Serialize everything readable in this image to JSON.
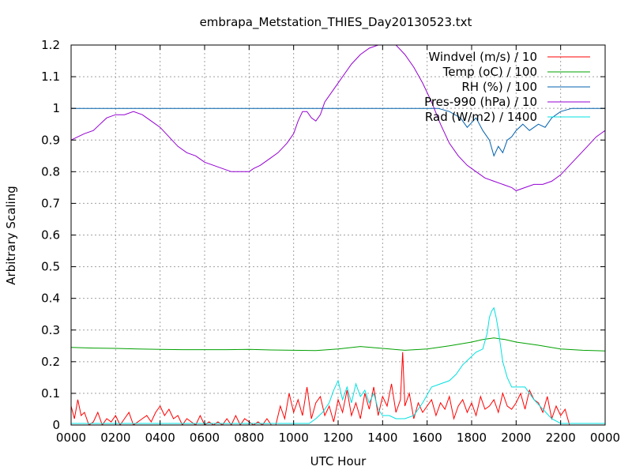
{
  "chart_data": {
    "type": "line",
    "title": "embrapa_Metstation_THIES_Day20130523.txt",
    "xlabel": "UTC Hour",
    "ylabel": "Arbitrary Scaling",
    "xlim": [
      0,
      24
    ],
    "ylim": [
      0,
      1.2
    ],
    "grid": true,
    "legend_position": "top-right",
    "x_ticks": [
      {
        "value": 0,
        "label": "0000"
      },
      {
        "value": 2,
        "label": "0200"
      },
      {
        "value": 4,
        "label": "0400"
      },
      {
        "value": 6,
        "label": "0600"
      },
      {
        "value": 8,
        "label": "0800"
      },
      {
        "value": 10,
        "label": "1000"
      },
      {
        "value": 12,
        "label": "1200"
      },
      {
        "value": 14,
        "label": "1400"
      },
      {
        "value": 16,
        "label": "1600"
      },
      {
        "value": 18,
        "label": "1800"
      },
      {
        "value": 20,
        "label": "2000"
      },
      {
        "value": 22,
        "label": "2200"
      },
      {
        "value": 24,
        "label": "0000"
      }
    ],
    "y_ticks": [
      {
        "value": 0,
        "label": "0"
      },
      {
        "value": 0.1,
        "label": "0.1"
      },
      {
        "value": 0.2,
        "label": "0.2"
      },
      {
        "value": 0.3,
        "label": "0.3"
      },
      {
        "value": 0.4,
        "label": "0.4"
      },
      {
        "value": 0.5,
        "label": "0.5"
      },
      {
        "value": 0.6,
        "label": "0.6"
      },
      {
        "value": 0.7,
        "label": "0.7"
      },
      {
        "value": 0.8,
        "label": "0.8"
      },
      {
        "value": 0.9,
        "label": "0.9"
      },
      {
        "value": 1.0,
        "label": "1"
      },
      {
        "value": 1.1,
        "label": "1.1"
      },
      {
        "value": 1.2,
        "label": "1.2"
      }
    ],
    "series": [
      {
        "name": "Windvel (m/s) / 10",
        "color": "#ff0000",
        "x": [
          0,
          0.15,
          0.3,
          0.45,
          0.6,
          0.8,
          1,
          1.2,
          1.4,
          1.6,
          1.8,
          2,
          2.2,
          2.4,
          2.6,
          2.8,
          3,
          3.2,
          3.4,
          3.6,
          3.8,
          4,
          4.2,
          4.4,
          4.6,
          4.8,
          5,
          5.2,
          5.4,
          5.6,
          5.8,
          6,
          6.2,
          6.4,
          6.6,
          6.8,
          7,
          7.2,
          7.4,
          7.6,
          7.8,
          8,
          8.2,
          8.4,
          8.6,
          8.8,
          9,
          9.2,
          9.4,
          9.6,
          9.8,
          10,
          10.2,
          10.4,
          10.6,
          10.8,
          11,
          11.2,
          11.4,
          11.6,
          11.8,
          12,
          12.2,
          12.4,
          12.6,
          12.8,
          13,
          13.2,
          13.4,
          13.6,
          13.8,
          14,
          14.2,
          14.4,
          14.6,
          14.8,
          14.9,
          15,
          15.2,
          15.4,
          15.6,
          15.8,
          16,
          16.2,
          16.4,
          16.6,
          16.8,
          17,
          17.2,
          17.4,
          17.6,
          17.8,
          18,
          18.2,
          18.4,
          18.6,
          18.8,
          19,
          19.2,
          19.4,
          19.6,
          19.8,
          20,
          20.2,
          20.4,
          20.6,
          20.8,
          21,
          21.2,
          21.4,
          21.6,
          21.8,
          22,
          22.2,
          22.4,
          23,
          24
        ],
        "y": [
          0.06,
          0.02,
          0.08,
          0.03,
          0.04,
          0,
          0.01,
          0.04,
          0,
          0.02,
          0.01,
          0.03,
          0,
          0.02,
          0.04,
          0,
          0.01,
          0.02,
          0.03,
          0.01,
          0.04,
          0.06,
          0.03,
          0.05,
          0.02,
          0.03,
          0,
          0.02,
          0.01,
          0,
          0.03,
          0,
          0.01,
          0,
          0.01,
          0,
          0.02,
          0,
          0.03,
          0,
          0.02,
          0.01,
          0,
          0.01,
          0,
          0.02,
          0,
          0,
          0.06,
          0.02,
          0.1,
          0.04,
          0.08,
          0.03,
          0.12,
          0.02,
          0.07,
          0.09,
          0.03,
          0.06,
          0.01,
          0.08,
          0.04,
          0.11,
          0.03,
          0.07,
          0.02,
          0.1,
          0.05,
          0.12,
          0.03,
          0.09,
          0.06,
          0.13,
          0.04,
          0.08,
          0.23,
          0.06,
          0.1,
          0.02,
          0.07,
          0.04,
          0.06,
          0.08,
          0.03,
          0.07,
          0.05,
          0.09,
          0.02,
          0.06,
          0.08,
          0.04,
          0.07,
          0.03,
          0.09,
          0.05,
          0.06,
          0.08,
          0.04,
          0.1,
          0.06,
          0.05,
          0.07,
          0.1,
          0.05,
          0.11,
          0.08,
          0.07,
          0.04,
          0.09,
          0.02,
          0.06,
          0.03,
          0.05,
          0,
          0,
          0
        ]
      },
      {
        "name": "Temp (oC) / 100",
        "color": "#00a000",
        "x": [
          0,
          1,
          2,
          3,
          4,
          5,
          6,
          7,
          8,
          9,
          10,
          11,
          12,
          13,
          14,
          15,
          16,
          17,
          18,
          18.5,
          19,
          19.5,
          20,
          21,
          22,
          23,
          24
        ],
        "y": [
          0.245,
          0.243,
          0.242,
          0.24,
          0.239,
          0.238,
          0.238,
          0.238,
          0.239,
          0.237,
          0.236,
          0.235,
          0.24,
          0.248,
          0.242,
          0.236,
          0.24,
          0.25,
          0.262,
          0.27,
          0.275,
          0.27,
          0.262,
          0.252,
          0.24,
          0.236,
          0.234
        ]
      },
      {
        "name": "RH (%) / 100",
        "color": "#0060ad",
        "x": [
          0,
          16.5,
          17,
          17.5,
          17.8,
          18.2,
          18.5,
          18.8,
          19,
          19.2,
          19.4,
          19.6,
          19.8,
          20,
          20.3,
          20.6,
          21,
          21.3,
          21.6,
          22,
          22.5,
          23,
          24
        ],
        "y": [
          1.0,
          1.0,
          0.99,
          0.97,
          0.94,
          0.97,
          0.93,
          0.9,
          0.85,
          0.88,
          0.86,
          0.9,
          0.91,
          0.93,
          0.95,
          0.93,
          0.95,
          0.94,
          0.97,
          0.99,
          1.0,
          1.0,
          1.0
        ]
      },
      {
        "name": "Pres-990 (hPa) / 10",
        "color": "#9400d3",
        "x": [
          0,
          0.3,
          0.6,
          1,
          1.3,
          1.6,
          2,
          2.4,
          2.8,
          3.2,
          3.6,
          4,
          4.4,
          4.8,
          5.2,
          5.6,
          6,
          6.4,
          6.8,
          7.2,
          7.6,
          8,
          8.2,
          8.5,
          8.9,
          9.3,
          9.7,
          10,
          10.2,
          10.4,
          10.6,
          10.8,
          11,
          11.2,
          11.4,
          11.8,
          12.2,
          12.6,
          13,
          13.4,
          13.8,
          14.2,
          14.6,
          15,
          15.4,
          15.8,
          16.2,
          16.6,
          17,
          17.4,
          17.8,
          18.2,
          18.6,
          19,
          19.4,
          19.8,
          20,
          20.4,
          20.8,
          21.2,
          21.6,
          22,
          22.4,
          22.8,
          23.2,
          23.6,
          24
        ],
        "y": [
          0.9,
          0.91,
          0.92,
          0.93,
          0.95,
          0.97,
          0.98,
          0.98,
          0.99,
          0.98,
          0.96,
          0.94,
          0.91,
          0.88,
          0.86,
          0.85,
          0.83,
          0.82,
          0.81,
          0.8,
          0.8,
          0.8,
          0.81,
          0.82,
          0.84,
          0.86,
          0.89,
          0.92,
          0.96,
          0.99,
          0.99,
          0.97,
          0.96,
          0.98,
          1.02,
          1.06,
          1.1,
          1.14,
          1.17,
          1.19,
          1.2,
          1.2,
          1.2,
          1.17,
          1.13,
          1.08,
          1.02,
          0.95,
          0.89,
          0.85,
          0.82,
          0.8,
          0.78,
          0.77,
          0.76,
          0.75,
          0.74,
          0.75,
          0.76,
          0.76,
          0.77,
          0.79,
          0.82,
          0.85,
          0.88,
          0.91,
          0.93
        ]
      },
      {
        "name": "Rad (W/m2) / 1400",
        "color": "#00e0e0",
        "x": [
          0,
          10.7,
          11,
          11.3,
          11.6,
          11.8,
          12,
          12.2,
          12.4,
          12.6,
          12.8,
          13,
          13.2,
          13.4,
          13.6,
          13.8,
          14,
          14.3,
          14.6,
          15,
          15.4,
          15.8,
          16.2,
          16.6,
          17,
          17.3,
          17.6,
          17.9,
          18.2,
          18.5,
          18.7,
          18.8,
          18.9,
          19,
          19.1,
          19.2,
          19.4,
          19.6,
          19.8,
          20,
          20.4,
          20.8,
          21.2,
          21.6,
          22,
          24
        ],
        "y": [
          0.005,
          0.005,
          0.02,
          0.04,
          0.07,
          0.11,
          0.14,
          0.08,
          0.12,
          0.07,
          0.13,
          0.09,
          0.11,
          0.07,
          0.1,
          0.05,
          0.03,
          0.03,
          0.02,
          0.02,
          0.03,
          0.07,
          0.12,
          0.13,
          0.14,
          0.16,
          0.19,
          0.21,
          0.23,
          0.24,
          0.29,
          0.34,
          0.36,
          0.37,
          0.34,
          0.3,
          0.2,
          0.15,
          0.12,
          0.12,
          0.12,
          0.08,
          0.05,
          0.02,
          0.005,
          0.005
        ]
      }
    ]
  }
}
